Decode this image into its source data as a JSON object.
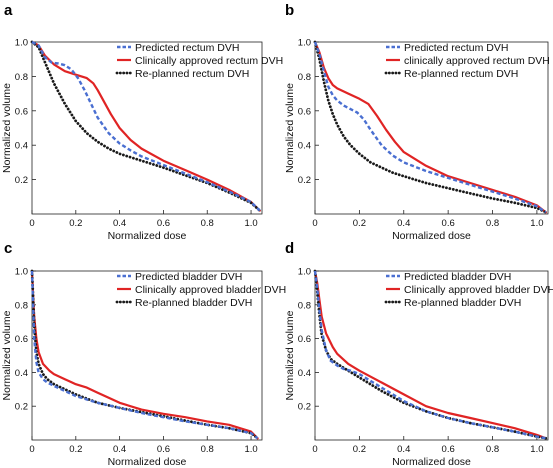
{
  "chart_data": [
    {
      "type": "line",
      "panel_label": "a",
      "xlabel": "Normalized dose",
      "ylabel": "Normalized volume",
      "xticks": [
        "0",
        "0.2",
        "0.4",
        "0.6",
        "0.8",
        "1.0"
      ],
      "yticks": [
        "0.2",
        "0.4",
        "0.6",
        "0.8",
        "1.0"
      ],
      "xlim": [
        0,
        1.05
      ],
      "ylim": [
        0,
        1.0
      ],
      "legend_position": "top-right",
      "series": [
        {
          "name": "Predicted rectum DVH",
          "color": "#4a6fd1",
          "style": "dash",
          "x": [
            0,
            0.03,
            0.06,
            0.09,
            0.12,
            0.15,
            0.18,
            0.21,
            0.24,
            0.27,
            0.3,
            0.35,
            0.4,
            0.45,
            0.5,
            0.6,
            0.7,
            0.8,
            0.9,
            1.0,
            1.04
          ],
          "y": [
            1.0,
            0.98,
            0.91,
            0.88,
            0.875,
            0.865,
            0.84,
            0.79,
            0.72,
            0.64,
            0.56,
            0.47,
            0.41,
            0.37,
            0.335,
            0.285,
            0.235,
            0.185,
            0.13,
            0.07,
            0.02
          ]
        },
        {
          "name": "Clinically approved rectum DVH",
          "color": "#e02424",
          "style": "solid",
          "x": [
            0,
            0.03,
            0.06,
            0.1,
            0.15,
            0.2,
            0.25,
            0.28,
            0.3,
            0.33,
            0.36,
            0.4,
            0.45,
            0.5,
            0.6,
            0.7,
            0.8,
            0.9,
            1.0,
            1.04
          ],
          "y": [
            1.0,
            0.98,
            0.92,
            0.87,
            0.83,
            0.81,
            0.79,
            0.76,
            0.72,
            0.65,
            0.58,
            0.5,
            0.43,
            0.38,
            0.31,
            0.255,
            0.2,
            0.14,
            0.07,
            0.02
          ]
        },
        {
          "name": "Re-planned rectum DVH",
          "color": "#1a1a1a",
          "style": "dot",
          "x": [
            0,
            0.03,
            0.06,
            0.1,
            0.15,
            0.2,
            0.25,
            0.3,
            0.35,
            0.4,
            0.5,
            0.6,
            0.7,
            0.8,
            0.9,
            1.0,
            1.04
          ],
          "y": [
            1.0,
            0.97,
            0.88,
            0.76,
            0.64,
            0.54,
            0.47,
            0.42,
            0.38,
            0.35,
            0.31,
            0.27,
            0.225,
            0.18,
            0.125,
            0.065,
            0.02
          ]
        }
      ]
    },
    {
      "type": "line",
      "panel_label": "b",
      "xlabel": "Normalized dose",
      "ylabel": "Normalized volume",
      "xticks": [
        "0",
        "0.2",
        "0.4",
        "0.6",
        "0.8",
        "1.0"
      ],
      "yticks": [
        "0.2",
        "0.4",
        "0.6",
        "0.8",
        "1.0"
      ],
      "xlim": [
        0,
        1.05
      ],
      "ylim": [
        0,
        1.0
      ],
      "legend_position": "top-right",
      "series": [
        {
          "name": "Predicted rectum DVH",
          "color": "#4a6fd1",
          "style": "dash",
          "x": [
            0,
            0.02,
            0.04,
            0.06,
            0.08,
            0.1,
            0.13,
            0.16,
            0.19,
            0.22,
            0.25,
            0.3,
            0.35,
            0.4,
            0.5,
            0.6,
            0.7,
            0.8,
            0.9,
            1.0,
            1.04
          ],
          "y": [
            1.0,
            0.93,
            0.83,
            0.74,
            0.69,
            0.66,
            0.63,
            0.61,
            0.59,
            0.55,
            0.49,
            0.4,
            0.34,
            0.3,
            0.25,
            0.21,
            0.17,
            0.13,
            0.09,
            0.045,
            0.01
          ]
        },
        {
          "name": "clinically approved rectum DVH",
          "color": "#e02424",
          "style": "solid",
          "x": [
            0,
            0.02,
            0.04,
            0.06,
            0.08,
            0.1,
            0.15,
            0.2,
            0.24,
            0.28,
            0.32,
            0.36,
            0.4,
            0.5,
            0.6,
            0.7,
            0.8,
            0.9,
            1.0,
            1.04
          ],
          "y": [
            1.0,
            0.94,
            0.85,
            0.79,
            0.75,
            0.73,
            0.7,
            0.67,
            0.64,
            0.57,
            0.49,
            0.42,
            0.36,
            0.28,
            0.22,
            0.18,
            0.14,
            0.1,
            0.05,
            0.01
          ]
        },
        {
          "name": "Re-planned rectum DVH",
          "color": "#1a1a1a",
          "style": "dot",
          "x": [
            0,
            0.02,
            0.04,
            0.06,
            0.08,
            0.1,
            0.13,
            0.16,
            0.2,
            0.25,
            0.3,
            0.35,
            0.4,
            0.5,
            0.6,
            0.7,
            0.8,
            0.9,
            1.0,
            1.04
          ],
          "y": [
            1.0,
            0.9,
            0.77,
            0.66,
            0.58,
            0.52,
            0.45,
            0.4,
            0.35,
            0.3,
            0.27,
            0.24,
            0.22,
            0.18,
            0.15,
            0.12,
            0.09,
            0.065,
            0.035,
            0.01
          ]
        }
      ]
    },
    {
      "type": "line",
      "panel_label": "c",
      "xlabel": "Normalized dose",
      "ylabel": "Normalized volume",
      "xticks": [
        "0",
        "0.2",
        "0.4",
        "0.6",
        "0.8",
        "1.0"
      ],
      "yticks": [
        "0.2",
        "0.4",
        "0.6",
        "0.8",
        "1.0"
      ],
      "xlim": [
        0,
        1.05
      ],
      "ylim": [
        0,
        1.0
      ],
      "legend_position": "top-right",
      "series": [
        {
          "name": "Predicted bladder DVH",
          "color": "#4a6fd1",
          "style": "dash",
          "x": [
            0,
            0.005,
            0.01,
            0.02,
            0.03,
            0.05,
            0.07,
            0.1,
            0.15,
            0.2,
            0.3,
            0.4,
            0.5,
            0.6,
            0.7,
            0.8,
            0.9,
            1.0,
            1.03
          ],
          "y": [
            1.0,
            0.8,
            0.6,
            0.46,
            0.4,
            0.36,
            0.34,
            0.32,
            0.29,
            0.26,
            0.22,
            0.19,
            0.16,
            0.135,
            0.11,
            0.09,
            0.07,
            0.04,
            0.01
          ]
        },
        {
          "name": "Clinically approved bladder DVH",
          "color": "#e02424",
          "style": "solid",
          "x": [
            0,
            0.005,
            0.01,
            0.02,
            0.03,
            0.05,
            0.08,
            0.1,
            0.15,
            0.2,
            0.25,
            0.3,
            0.35,
            0.4,
            0.5,
            0.6,
            0.7,
            0.8,
            0.9,
            1.0,
            1.03
          ],
          "y": [
            1.0,
            0.86,
            0.73,
            0.6,
            0.52,
            0.45,
            0.41,
            0.39,
            0.36,
            0.33,
            0.31,
            0.28,
            0.25,
            0.22,
            0.18,
            0.155,
            0.135,
            0.11,
            0.09,
            0.05,
            0.01
          ]
        },
        {
          "name": "Re-planned bladder DVH",
          "color": "#1a1a1a",
          "style": "dot",
          "x": [
            0,
            0.005,
            0.01,
            0.02,
            0.03,
            0.05,
            0.07,
            0.1,
            0.15,
            0.2,
            0.3,
            0.4,
            0.5,
            0.6,
            0.7,
            0.8,
            0.9,
            1.0,
            1.03
          ],
          "y": [
            1.0,
            0.84,
            0.68,
            0.52,
            0.45,
            0.39,
            0.36,
            0.33,
            0.3,
            0.27,
            0.22,
            0.19,
            0.165,
            0.14,
            0.115,
            0.09,
            0.07,
            0.04,
            0.01
          ]
        }
      ]
    },
    {
      "type": "line",
      "panel_label": "d",
      "xlabel": "Normalized dose",
      "ylabel": "Normalized volume",
      "xticks": [
        "0",
        "0.2",
        "0.4",
        "0.6",
        "0.8",
        "1.0"
      ],
      "yticks": [
        "0.2",
        "0.4",
        "0.6",
        "0.8",
        "1.0"
      ],
      "xlim": [
        0,
        1.05
      ],
      "ylim": [
        0,
        1.0
      ],
      "legend_position": "top-right",
      "series": [
        {
          "name": "Predicted bladder DVH",
          "color": "#4a6fd1",
          "style": "dash",
          "x": [
            0,
            0.01,
            0.02,
            0.03,
            0.05,
            0.07,
            0.1,
            0.13,
            0.16,
            0.2,
            0.25,
            0.3,
            0.4,
            0.5,
            0.6,
            0.7,
            0.8,
            0.9,
            1.0,
            1.04
          ],
          "y": [
            1.0,
            0.9,
            0.77,
            0.65,
            0.53,
            0.47,
            0.44,
            0.42,
            0.41,
            0.39,
            0.35,
            0.31,
            0.23,
            0.17,
            0.13,
            0.1,
            0.075,
            0.05,
            0.02,
            0.01
          ]
        },
        {
          "name": "Clinically approved bladder DVH",
          "color": "#e02424",
          "style": "solid",
          "x": [
            0,
            0.01,
            0.02,
            0.03,
            0.05,
            0.08,
            0.1,
            0.15,
            0.2,
            0.3,
            0.4,
            0.5,
            0.6,
            0.7,
            0.8,
            0.9,
            1.0,
            1.04
          ],
          "y": [
            1.0,
            0.93,
            0.83,
            0.73,
            0.63,
            0.55,
            0.51,
            0.45,
            0.41,
            0.34,
            0.27,
            0.2,
            0.16,
            0.13,
            0.1,
            0.07,
            0.03,
            0.01
          ]
        },
        {
          "name": "Re-planned bladder DVH",
          "color": "#1a1a1a",
          "style": "dot",
          "x": [
            0,
            0.01,
            0.02,
            0.03,
            0.05,
            0.07,
            0.1,
            0.15,
            0.2,
            0.3,
            0.4,
            0.5,
            0.6,
            0.7,
            0.8,
            0.9,
            1.0,
            1.04
          ],
          "y": [
            1.0,
            0.88,
            0.74,
            0.62,
            0.53,
            0.48,
            0.45,
            0.41,
            0.37,
            0.29,
            0.22,
            0.17,
            0.13,
            0.1,
            0.075,
            0.05,
            0.02,
            0.01
          ]
        }
      ]
    }
  ]
}
